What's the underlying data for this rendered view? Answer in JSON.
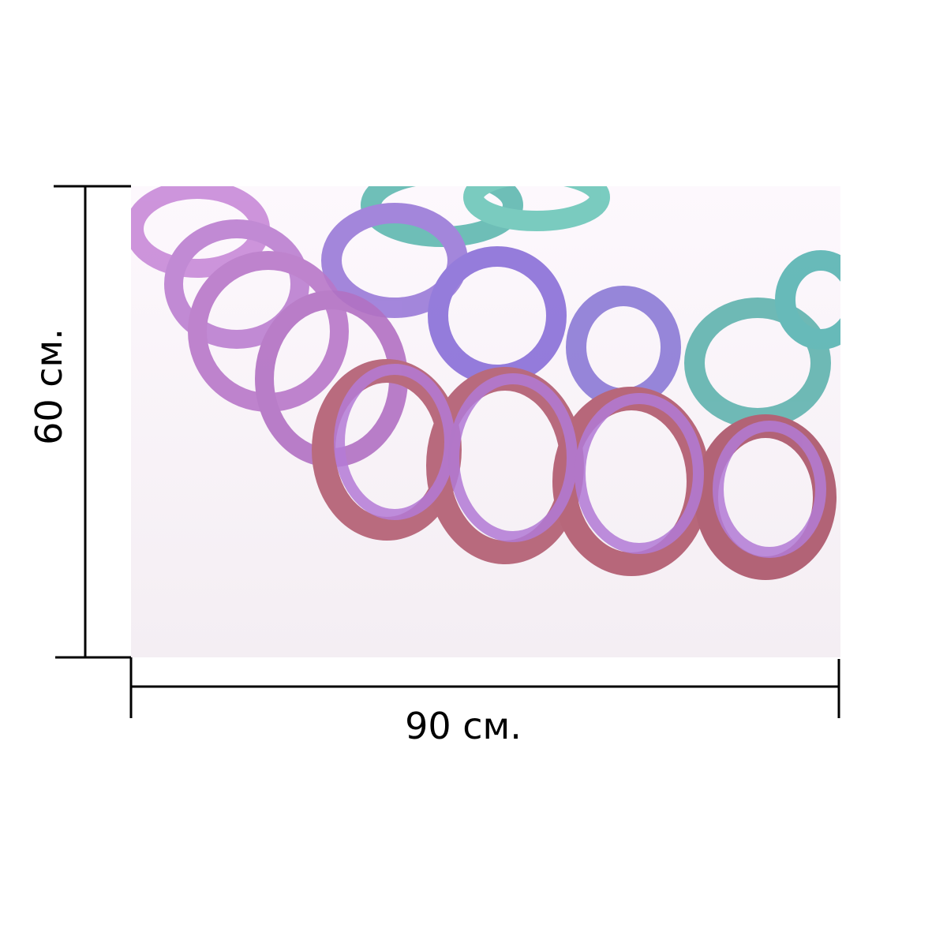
{
  "dimensions": {
    "width": "90 см.",
    "height": "60 см."
  }
}
